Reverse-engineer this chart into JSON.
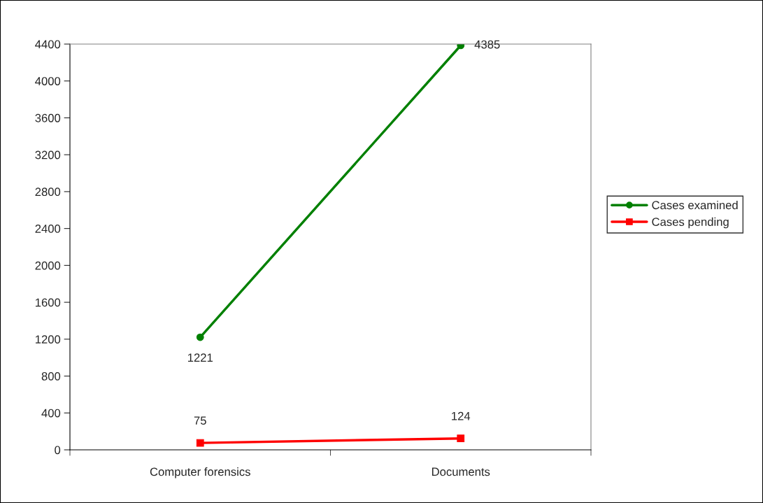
{
  "chart_data": {
    "type": "line",
    "categories": [
      "Computer forensics",
      "Documents"
    ],
    "series": [
      {
        "name": "Cases examined",
        "color": "#008000",
        "values": [
          1221,
          4385
        ],
        "marker": "circle"
      },
      {
        "name": "Cases pending",
        "color": "#ff0000",
        "values": [
          75,
          124
        ],
        "marker": "square"
      }
    ],
    "ylim": [
      0,
      4400
    ],
    "yticks": [
      0,
      400,
      800,
      1200,
      1600,
      2000,
      2400,
      2800,
      3200,
      3600,
      4000,
      4400
    ],
    "data_labels": true,
    "legend": "right",
    "grid": false,
    "line_style": "solid"
  }
}
